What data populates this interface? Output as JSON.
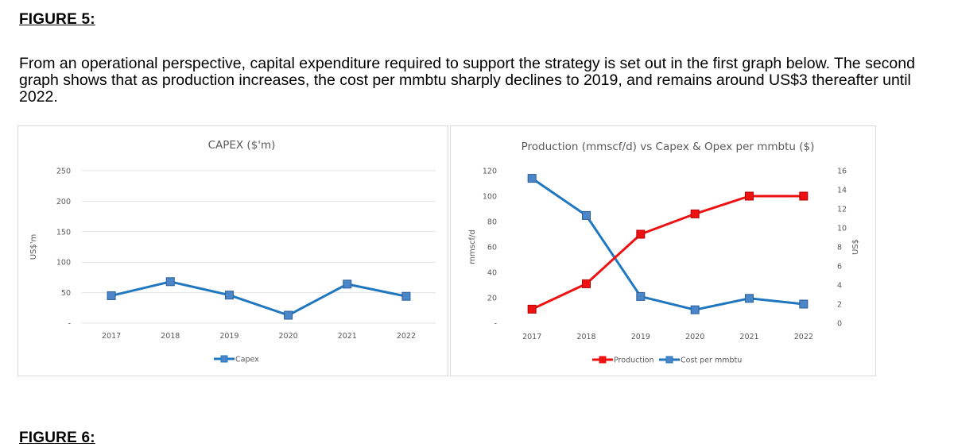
{
  "heading": "FIGURE 5:",
  "paragraph": "From an operational perspective, capital expenditure required to support the strategy is set out in the first graph below.  The second graph shows that as production increases, the cost per mmbtu sharply declines to 2019, and remains around US$3 thereafter until 2022.",
  "next_heading": "FIGURE 6:",
  "colors": {
    "blue": "#1f77c0",
    "blue_marker": "#4a86c8",
    "red": "#ee1111"
  },
  "chart_data": [
    {
      "type": "line",
      "title": "CAPEX ($'m)",
      "ylabel": "US$'m",
      "x": [
        "2017",
        "2018",
        "2019",
        "2020",
        "2021",
        "2022"
      ],
      "y_ticks": [
        "250",
        "200",
        "150",
        "100",
        "50",
        "-"
      ],
      "ylim": [
        0,
        250
      ],
      "series": [
        {
          "name": "Capex",
          "values": [
            45,
            68,
            46,
            13,
            64,
            44
          ],
          "color": "#1f77c0",
          "marker": "square"
        }
      ],
      "legend": "bottom",
      "grid": true
    },
    {
      "type": "line",
      "title": "Production (mmscf/d) vs Capex & Opex per mmbtu ($)",
      "ylabel": "mmscf/d",
      "y2label": "US$",
      "x": [
        "2017",
        "2018",
        "2019",
        "2020",
        "2021",
        "2022"
      ],
      "y_ticks": [
        "120",
        "100",
        "80",
        "60",
        "40",
        "20",
        "-"
      ],
      "y2_ticks": [
        "16",
        "14",
        "12",
        "10",
        "8",
        "6",
        "4",
        "2",
        "0"
      ],
      "ylim": [
        0,
        120
      ],
      "y2lim": [
        0,
        16
      ],
      "series": [
        {
          "name": "Production",
          "axis": "left",
          "values": [
            11,
            31,
            70,
            86,
            100,
            100
          ],
          "color": "#ee1111",
          "marker": "square"
        },
        {
          "name": "Cost per mmbtu",
          "axis": "right",
          "values": [
            15.2,
            11.3,
            2.8,
            1.4,
            2.6,
            2.0
          ],
          "color": "#1f77c0",
          "marker": "square"
        }
      ],
      "legend": "bottom",
      "grid": false
    }
  ]
}
